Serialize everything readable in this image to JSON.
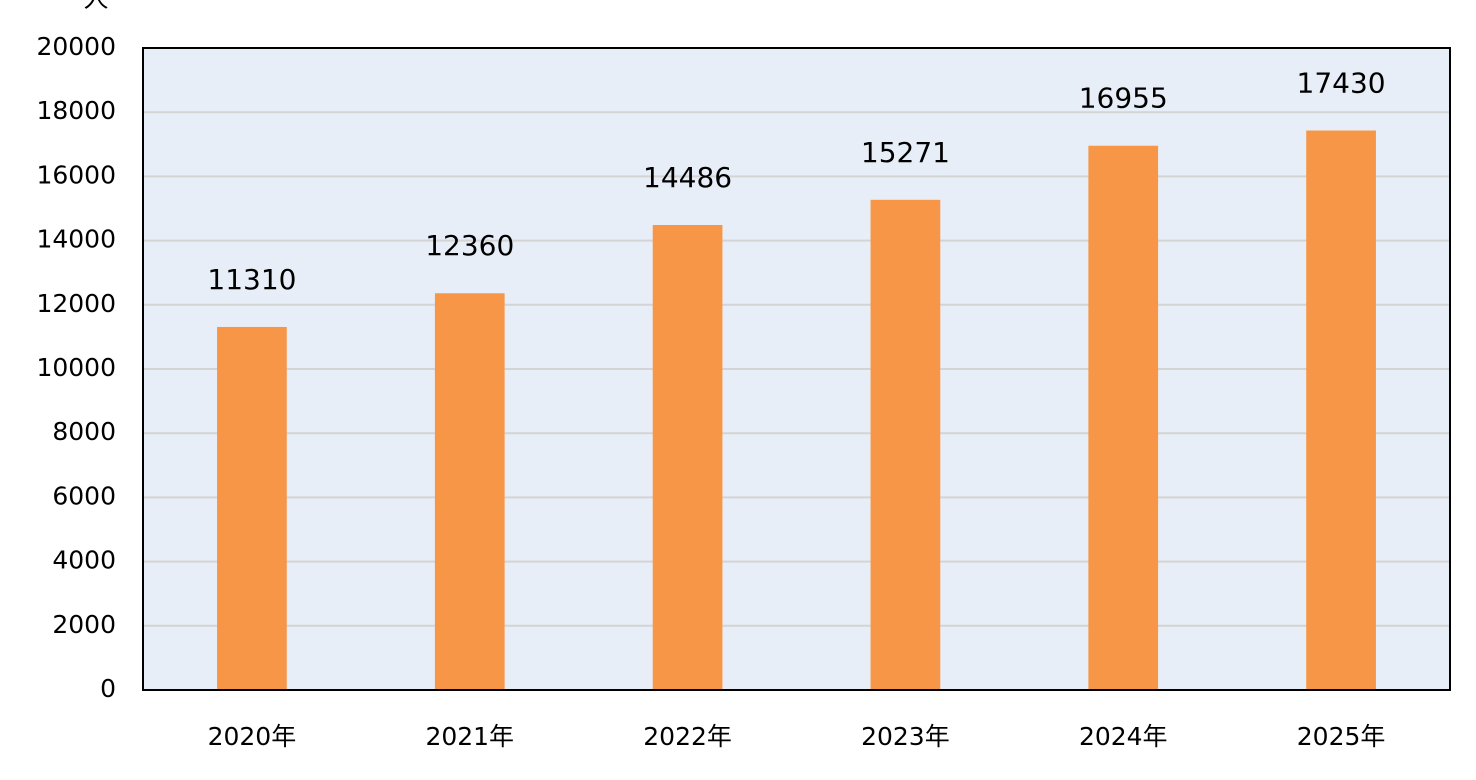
{
  "chart_data": {
    "type": "bar",
    "y_label": "人",
    "categories": [
      "2020年",
      "2021年",
      "2022年",
      "2023年",
      "2024年",
      "2025年"
    ],
    "values": [
      11310,
      12360,
      14486,
      15271,
      16955,
      17430
    ],
    "color": "#f79646",
    "ylim": [
      0,
      20000
    ],
    "yticks": [
      0,
      2000,
      4000,
      6000,
      8000,
      10000,
      12000,
      14000,
      16000,
      18000,
      20000
    ],
    "grid": true
  }
}
